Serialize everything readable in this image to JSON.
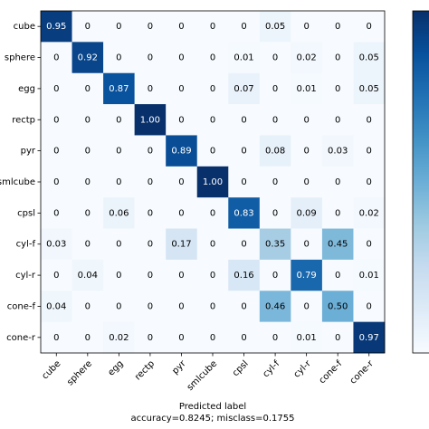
{
  "chart_data": {
    "type": "heatmap",
    "x_label": "Predicted label",
    "note": "accuracy=0.8245; misclass=0.1755",
    "colormap": "Blues",
    "categories": [
      "cube",
      "sphere",
      "egg",
      "rectp",
      "pyr",
      "smlcube",
      "cpsl",
      "cyl-f",
      "cyl-r",
      "cone-f",
      "cone-r"
    ],
    "values": [
      [
        0.95,
        0,
        0,
        0,
        0,
        0,
        0,
        0.05,
        0,
        0,
        0
      ],
      [
        0,
        0.92,
        0,
        0,
        0,
        0,
        0.01,
        0,
        0.02,
        0,
        0.05
      ],
      [
        0,
        0,
        0.87,
        0,
        0,
        0,
        0.07,
        0,
        0.01,
        0,
        0.05
      ],
      [
        0,
        0,
        0,
        1,
        0,
        0,
        0,
        0,
        0,
        0,
        0
      ],
      [
        0,
        0,
        0,
        0,
        0.89,
        0,
        0,
        0.08,
        0,
        0.03,
        0
      ],
      [
        0,
        0,
        0,
        0,
        0,
        1,
        0,
        0,
        0,
        0,
        0
      ],
      [
        0,
        0,
        0.06,
        0,
        0,
        0,
        0.83,
        0,
        0.09,
        0,
        0.02
      ],
      [
        0.03,
        0,
        0,
        0,
        0.17,
        0,
        0,
        0.35,
        0,
        0.45,
        0
      ],
      [
        0,
        0.04,
        0,
        0,
        0,
        0,
        0.16,
        0,
        0.79,
        0,
        0.01
      ],
      [
        0.04,
        0,
        0,
        0,
        0,
        0,
        0,
        0.46,
        0,
        0.5,
        0
      ],
      [
        0,
        0,
        0.02,
        0,
        0,
        0,
        0,
        0,
        0.01,
        0,
        0.97
      ]
    ],
    "value_labels": [
      [
        "0.95",
        "0",
        "0",
        "0",
        "0",
        "0",
        "0",
        "0.05",
        "0",
        "0",
        "0"
      ],
      [
        "0",
        "0.92",
        "0",
        "0",
        "0",
        "0",
        "0.01",
        "0",
        "0.02",
        "0",
        "0.05"
      ],
      [
        "0",
        "0",
        "0.87",
        "0",
        "0",
        "0",
        "0.07",
        "0",
        "0.01",
        "0",
        "0.05"
      ],
      [
        "0",
        "0",
        "0",
        "1.00",
        "0",
        "0",
        "0",
        "0",
        "0",
        "0",
        "0"
      ],
      [
        "0",
        "0",
        "0",
        "0",
        "0.89",
        "0",
        "0",
        "0.08",
        "0",
        "0.03",
        "0"
      ],
      [
        "0",
        "0",
        "0",
        "0",
        "0",
        "1.00",
        "0",
        "0",
        "0",
        "0",
        "0"
      ],
      [
        "0",
        "0",
        "0.06",
        "0",
        "0",
        "0",
        "0.83",
        "0",
        "0.09",
        "0",
        "0.02"
      ],
      [
        "0.03",
        "0",
        "0",
        "0",
        "0.17",
        "0",
        "0",
        "0.35",
        "0",
        "0.45",
        "0"
      ],
      [
        "0",
        "0.04",
        "0",
        "0",
        "0",
        "0",
        "0.16",
        "0",
        "0.79",
        "0",
        "0.01"
      ],
      [
        "0.04",
        "0",
        "0",
        "0",
        "0",
        "0",
        "0",
        "0.46",
        "0",
        "0.50",
        "0"
      ],
      [
        "0",
        "0",
        "0.02",
        "0",
        "0",
        "0",
        "0",
        "0",
        "0.01",
        "0",
        "0.97"
      ]
    ]
  }
}
